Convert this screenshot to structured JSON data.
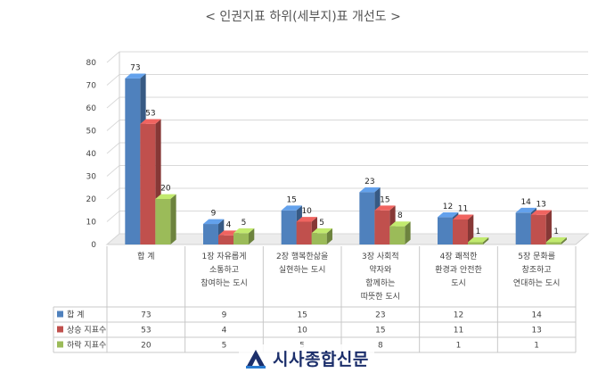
{
  "chart_data": {
    "type": "bar",
    "title": "< 인권지표 하위(세부지)표 개선도 >",
    "categories": [
      [
        "합   계"
      ],
      [
        "1장 자유롭게",
        "소통하고",
        "참여하는 도시"
      ],
      [
        "2장 행복한삶을",
        "실현하는 도시"
      ],
      [
        "3장 사회적",
        "약자와",
        "함께하는",
        "따뜻한 도시"
      ],
      [
        "4장 쾌적한",
        "환경과 안전한",
        "도시"
      ],
      [
        "5장 문화를",
        "창조하고",
        "연대하는 도시"
      ]
    ],
    "series": [
      {
        "name": "합   계",
        "values": [
          73,
          9,
          15,
          23,
          12,
          14
        ],
        "color": "#4f81bd"
      },
      {
        "name": "상승 지표수",
        "values": [
          53,
          4,
          10,
          15,
          11,
          13
        ],
        "color": "#c0504d"
      },
      {
        "name": "하락 지표수",
        "values": [
          20,
          5,
          5,
          8,
          1,
          1
        ],
        "color": "#9bbb59"
      }
    ],
    "yticks": [
      0,
      10,
      20,
      30,
      40,
      50,
      60,
      70,
      80
    ],
    "ylim": [
      0,
      80
    ],
    "grid": true,
    "legend": "data table below chart",
    "chart_style": "3d clustered column"
  },
  "watermark": {
    "text": "시사종합신문"
  }
}
